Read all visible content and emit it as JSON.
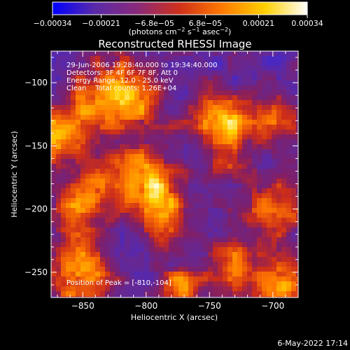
{
  "chart_data": {
    "type": "heatmap",
    "title": "Reconstructed RHESSI Image",
    "xlabel": "Heliocentric X (arcsec)",
    "ylabel": "Heliocentric Y (arcsec)",
    "xlim": [
      -875,
      -680
    ],
    "ylim": [
      -270,
      -75
    ],
    "x_ticks": [
      -850,
      -800,
      -750,
      -700
    ],
    "x_tick_labels": [
      "−850",
      "−800",
      "−750",
      "−700"
    ],
    "y_ticks": [
      -100,
      -150,
      -200,
      -250
    ],
    "y_tick_labels": [
      "−100",
      "−150",
      "−200",
      "−250"
    ],
    "colorbar": {
      "range": [
        -0.00034,
        0.00034
      ],
      "tick_values": [
        -0.00034,
        -0.00021,
        -6.8e-05,
        6.8e-05,
        0.00021,
        0.00034
      ],
      "tick_labels": [
        "−0.00034",
        "−0.00021",
        "−6.8e−05",
        "6.8e−05",
        "0.00021",
        "0.00034"
      ],
      "units_prefix": "(photons cm",
      "units_exp1": "−2",
      "units_mid1": " s",
      "units_exp2": "−1",
      "units_mid2": " asec",
      "units_exp3": "−2",
      "units_suffix": ")"
    },
    "annotations": [
      "29-Jun-2006 19:28:40.000 to 19:34:40.000",
      "Detectors: 3F 4F 6F 7F 8F, Att 0",
      "Energy Range: 12.0 - 25.0 keV",
      "Clean    Total counts: 1.26E+04"
    ],
    "peak_label": "Position of Peak = [-810,-104]",
    "peak": [
      -810,
      -104
    ],
    "grid": false,
    "colormap": [
      "#0000ff",
      "#5a2aa8",
      "#8a2a7a",
      "#d0301a",
      "#ff7a00",
      "#ffd000",
      "#ffffff"
    ]
  },
  "footer": {
    "date": "6-May-2022 17:14"
  }
}
